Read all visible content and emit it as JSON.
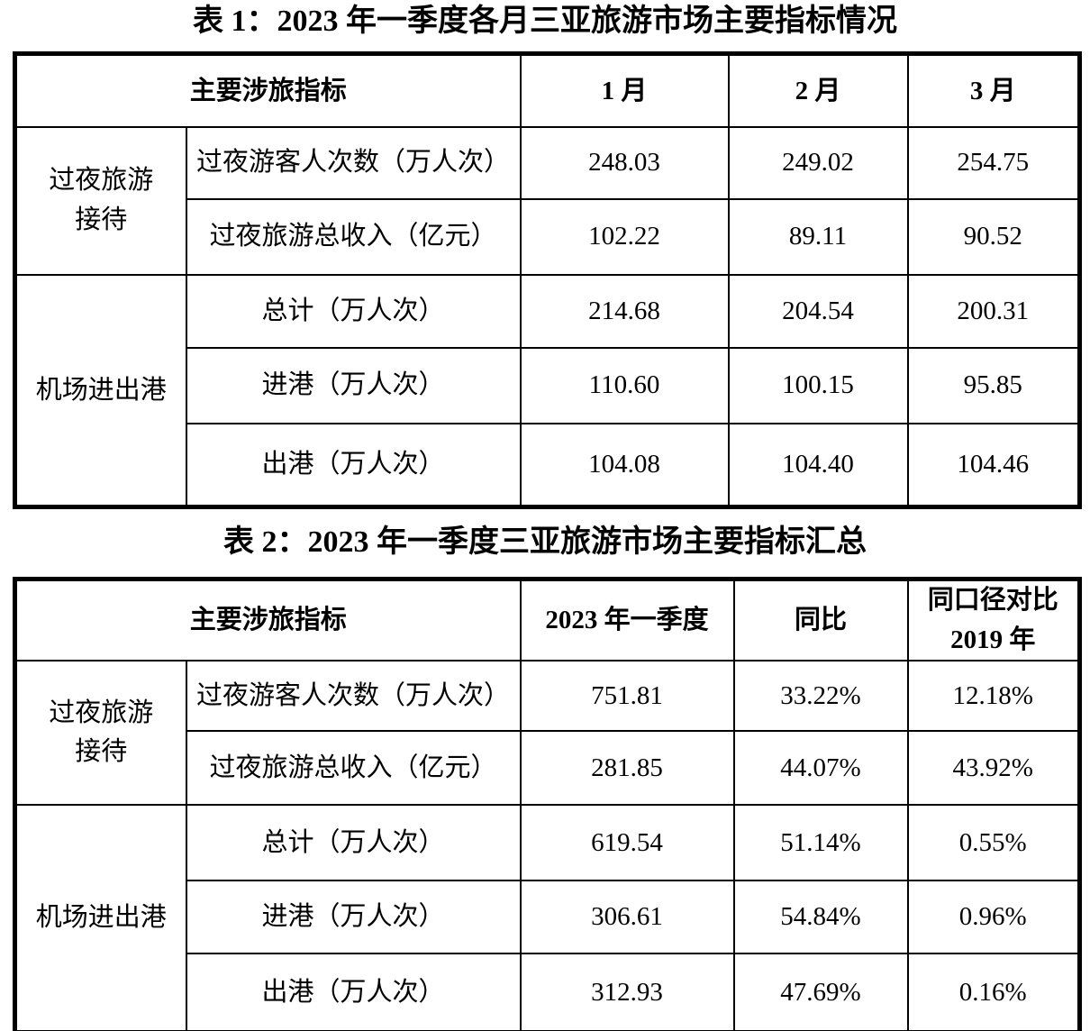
{
  "table1": {
    "title": "表 1：2023 年一季度各月三亚旅游市场主要指标情况",
    "header": {
      "indicator": "主要涉旅指标",
      "months": [
        "1 月",
        "2 月",
        "3 月"
      ]
    },
    "groups": [
      {
        "label_lines": [
          "过夜旅游",
          "接待"
        ],
        "rows": [
          {
            "label": "过夜游客人次数（万人次）",
            "values": [
              "248.03",
              "249.02",
              "254.75"
            ]
          },
          {
            "label": "过夜旅游总收入（亿元）",
            "values": [
              "102.22",
              "89.11",
              "90.52"
            ]
          }
        ]
      },
      {
        "label_lines": [
          "机场进出港"
        ],
        "rows": [
          {
            "label": "总计（万人次）",
            "values": [
              "214.68",
              "204.54",
              "200.31"
            ]
          },
          {
            "label": "进港（万人次）",
            "values": [
              "110.60",
              "100.15",
              "95.85"
            ]
          },
          {
            "label": "出港（万人次）",
            "values": [
              "104.08",
              "104.40",
              "104.46"
            ]
          }
        ]
      }
    ]
  },
  "table2": {
    "title": "表 2：2023 年一季度三亚旅游市场主要指标汇总",
    "header": {
      "indicator": "主要涉旅指标",
      "period": "2023 年一季度",
      "yoy": "同比",
      "vs2019_lines": [
        "同口径对比",
        "2019 年"
      ]
    },
    "groups": [
      {
        "label_lines": [
          "过夜旅游",
          "接待"
        ],
        "rows": [
          {
            "label": "过夜游客人次数（万人次）",
            "values": [
              "751.81",
              "33.22%",
              "12.18%"
            ]
          },
          {
            "label": "过夜旅游总收入（亿元）",
            "values": [
              "281.85",
              "44.07%",
              "43.92%"
            ]
          }
        ]
      },
      {
        "label_lines": [
          "机场进出港"
        ],
        "rows": [
          {
            "label": "总计（万人次）",
            "values": [
              "619.54",
              "51.14%",
              "0.55%"
            ]
          },
          {
            "label": "进港（万人次）",
            "values": [
              "306.61",
              "54.84%",
              "0.96%"
            ]
          },
          {
            "label": "出港（万人次）",
            "values": [
              "312.93",
              "47.69%",
              "0.16%"
            ]
          }
        ]
      }
    ]
  }
}
